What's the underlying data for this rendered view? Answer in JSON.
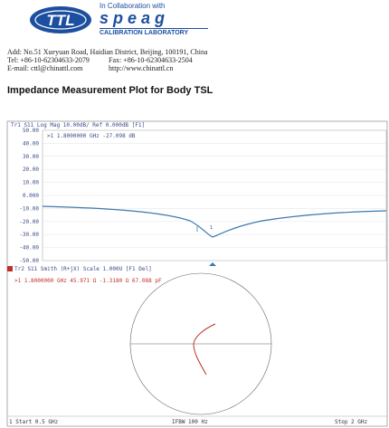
{
  "header": {
    "logo": "TTL",
    "collaboration": "In Collaboration with",
    "partner": "s p e a g",
    "lab": "CALIBRATION LABORATORY"
  },
  "address": {
    "line1": "Add: No.51 Xueyuan Road, Haidian District, Beijing, 100191, China",
    "tel": "Tel: +86-10-62304633-2079",
    "fax": "Fax: +86-10-62304633-2504",
    "email": "E-mail: cttl@chinattl.com",
    "web": "http://www.chinattl.cn"
  },
  "title": "Impedance Measurement Plot for Body TSL",
  "plot": {
    "logmag": {
      "header": "Tr1 S11 Log Mag 10.00dB/ Ref 0.000dB [F1]",
      "marker": ">1  1.8000000 GHz -27.098 dB",
      "ticks": [
        "50.00",
        "40.00",
        "30.00",
        "20.00",
        "10.00",
        "0.000",
        "-10.00",
        "-20.00",
        "-30.00",
        "-40.00",
        "-50.00"
      ]
    },
    "smith": {
      "header": "Tr2 S11 Smith (R+jX) Scale 1.000U [F1 Del]",
      "marker": ">1  1.8000000 GHz  45.971 Ω  -1.3180 Ω  67.088 pF"
    },
    "status": {
      "start": "1 Start 0.5 GHz",
      "ifbw": "IFBW 100 Hz",
      "stop": "Stop 2 GHz"
    }
  }
}
